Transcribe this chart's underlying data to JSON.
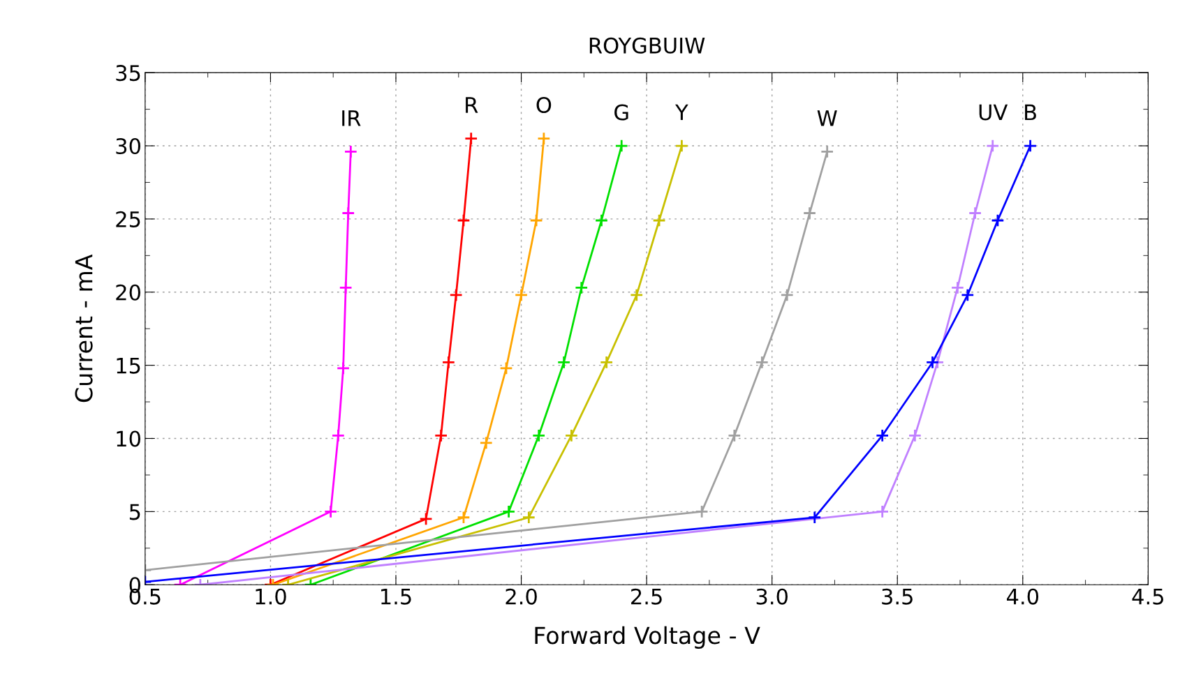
{
  "chart_data": {
    "type": "line",
    "title": "ROYGBUIW",
    "xlabel": "Forward Voltage - V",
    "ylabel": "Current - mA",
    "xlim": [
      0.5,
      4.5
    ],
    "ylim": [
      0,
      35
    ],
    "xticks": [
      0.5,
      {
        "value": 1,
        "label": "1.0"
      },
      1.5,
      {
        "value": 2,
        "label": "2.0"
      },
      2.5,
      {
        "value": 3,
        "label": "3.0"
      },
      3.5,
      {
        "value": 4,
        "label": "4.0"
      },
      4.5
    ],
    "yticks": [
      0,
      5,
      10,
      15,
      20,
      25,
      30,
      35
    ],
    "grid": true,
    "legend": false,
    "marker": "cross",
    "line_style": "solid",
    "series": [
      {
        "name": "IR",
        "color": "#ff00ff",
        "x": [
          0.64,
          1.24,
          1.27,
          1.29,
          1.3,
          1.31,
          1.32
        ],
        "values": [
          0,
          5.0,
          10.2,
          14.8,
          20.3,
          25.4,
          29.6
        ]
      },
      {
        "name": "R",
        "color": "#ff0000",
        "x": [
          1.0,
          1.62,
          1.68,
          1.71,
          1.74,
          1.77,
          1.8
        ],
        "values": [
          0,
          4.5,
          10.2,
          15.2,
          19.8,
          24.9,
          30.5
        ]
      },
      {
        "name": "O",
        "color": "#ffa500",
        "x": [
          1.01,
          1.77,
          1.86,
          1.94,
          2.0,
          2.06,
          2.09
        ],
        "values": [
          0,
          4.6,
          9.7,
          14.8,
          19.8,
          24.9,
          30.5
        ]
      },
      {
        "name": "G",
        "color": "#00e000",
        "x": [
          1.16,
          1.95,
          2.07,
          2.17,
          2.24,
          2.32,
          2.4
        ],
        "values": [
          0,
          5.0,
          10.2,
          15.2,
          20.3,
          24.9,
          30.0
        ]
      },
      {
        "name": "Y",
        "color": "#c8c000",
        "x": [
          1.07,
          2.03,
          2.2,
          2.34,
          2.46,
          2.55,
          2.64
        ],
        "values": [
          0,
          4.6,
          10.2,
          15.2,
          19.8,
          24.9,
          30.0
        ]
      },
      {
        "name": "W",
        "color": "#a0a0a0",
        "x": [
          0.5,
          2.72,
          2.85,
          2.96,
          3.06,
          3.15,
          3.22
        ],
        "values": [
          1.0,
          5.0,
          10.2,
          15.2,
          19.8,
          25.4,
          29.6
        ]
      },
      {
        "name": "UV",
        "color": "#c080ff",
        "x": [
          0.72,
          3.44,
          3.57,
          3.66,
          3.74,
          3.81,
          3.88
        ],
        "values": [
          0,
          5.0,
          10.2,
          15.2,
          20.3,
          25.4,
          30.0
        ]
      },
      {
        "name": "B",
        "color": "#0000ff",
        "x": [
          0.5,
          3.17,
          3.44,
          3.64,
          3.78,
          3.9,
          4.03
        ],
        "values": [
          0.2,
          4.6,
          10.2,
          15.2,
          19.8,
          24.9,
          30.0
        ]
      }
    ]
  }
}
